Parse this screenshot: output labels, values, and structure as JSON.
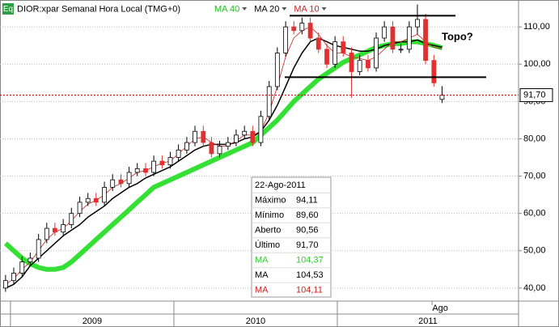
{
  "chart_data": {
    "type": "candlestick",
    "symbol": "Eq",
    "title": "DIOR:xpar Semanal Hora Local (TMG+0)",
    "x": [
      2008.97,
      2009.02,
      2009.071,
      2009.121,
      2009.172,
      2009.222,
      2009.272,
      2009.323,
      2009.373,
      2009.424,
      2009.474,
      2009.524,
      2009.575,
      2009.625,
      2009.676,
      2009.726,
      2009.776,
      2009.827,
      2009.877,
      2009.928,
      2009.978,
      2010.028,
      2010.079,
      2010.129,
      2010.18,
      2010.23,
      2010.28,
      2010.331,
      2010.381,
      2010.432,
      2010.482,
      2010.532,
      2010.583,
      2010.633,
      2010.684,
      2010.734,
      2010.784,
      2010.835,
      2010.885,
      2010.936,
      2010.986,
      2011.036,
      2011.087,
      2011.137,
      2011.188,
      2011.238,
      2011.288,
      2011.339,
      2011.389,
      2011.44,
      2011.49,
      2011.54,
      2011.591,
      2011.641
    ],
    "open": [
      40,
      42,
      44,
      47,
      48,
      53,
      56,
      55,
      57,
      60,
      63,
      64,
      63,
      67,
      69,
      68,
      71,
      72,
      71,
      74,
      73,
      75,
      77,
      79,
      82,
      79,
      76,
      78,
      79,
      81,
      82,
      79,
      86,
      94,
      103,
      110,
      109,
      111,
      107,
      104,
      100,
      106,
      103,
      98,
      101,
      99,
      107,
      110,
      104,
      104,
      110,
      112,
      101,
      90.56
    ],
    "high": [
      43.5,
      45.5,
      48.5,
      49.5,
      54.5,
      57.5,
      57.5,
      58.5,
      61.5,
      64.5,
      65.5,
      65.5,
      68.5,
      70.5,
      70.5,
      72.5,
      73.5,
      73.5,
      75.5,
      75.5,
      76.5,
      78.5,
      80.5,
      83.5,
      83.5,
      80.5,
      79.5,
      80.5,
      82.5,
      83.5,
      83.5,
      87.5,
      95.5,
      104.5,
      111.5,
      111.5,
      112.5,
      112.5,
      108.5,
      105.5,
      107.5,
      107.5,
      104.5,
      102.5,
      102.5,
      108.5,
      111.5,
      111.5,
      105.5,
      111.5,
      116,
      113.5,
      102.5,
      94.11
    ],
    "low": [
      39,
      41,
      43,
      46,
      47,
      52,
      54,
      54,
      56,
      59,
      62,
      62,
      62,
      66,
      67,
      67,
      70,
      70,
      70,
      72,
      72,
      74,
      76,
      78,
      78,
      75,
      75,
      77,
      78,
      80,
      78,
      78,
      85,
      93,
      102,
      108,
      108,
      106,
      103,
      99,
      99,
      102,
      91,
      97,
      98,
      98,
      106,
      103,
      103,
      103,
      108,
      100,
      94,
      89.6
    ],
    "close": [
      42,
      44,
      47,
      48,
      53,
      56,
      55,
      57,
      60,
      63,
      64,
      63,
      67,
      69,
      68,
      71,
      72,
      71,
      74,
      73,
      75,
      77,
      79,
      82,
      79,
      76,
      78,
      79,
      81,
      82,
      79,
      86,
      94,
      103,
      110,
      109,
      111,
      107,
      104,
      100,
      106,
      103,
      98,
      101,
      99,
      107,
      110,
      104,
      104,
      110,
      112,
      101,
      95,
      91.7
    ],
    "up_color": "#ffffff",
    "down_color": "#e03030",
    "series": [
      {
        "name": "MA 40",
        "color": "#33e033",
        "width": 6,
        "values": [
          52,
          50,
          48,
          46.5,
          45.5,
          45,
          45,
          45.5,
          47,
          49,
          51,
          53,
          55,
          57,
          59,
          61,
          63,
          65,
          67,
          68,
          69,
          70,
          71,
          72,
          73,
          74,
          75,
          76,
          77,
          78,
          79,
          81,
          83,
          85,
          87.5,
          90,
          92,
          94,
          96,
          97.5,
          99,
          100.5,
          101.5,
          102.5,
          103.5,
          104.5,
          105,
          105.5,
          105.5,
          106,
          106,
          105.5,
          105,
          104.37
        ]
      },
      {
        "name": "MA 20",
        "color": "#000000",
        "width": 1.5,
        "values": [
          40,
          41,
          43,
          46,
          48,
          50,
          52,
          54,
          55.5,
          57,
          59,
          60.5,
          62,
          64,
          65.5,
          67,
          68,
          69.5,
          70.5,
          71.5,
          72.5,
          74,
          75.5,
          77,
          78,
          78.5,
          78.5,
          78.5,
          79,
          80,
          80.5,
          82,
          85,
          89,
          94,
          99,
          103,
          106,
          107,
          106,
          105,
          104.5,
          104,
          103.5,
          103.5,
          104,
          105,
          105.5,
          106,
          106,
          106.5,
          105.5,
          105,
          104.53
        ]
      },
      {
        "name": "MA 10",
        "color": "#cc2222",
        "width": 0.8,
        "values": [
          41,
          42.5,
          45,
          47,
          50,
          53,
          55,
          56,
          58,
          60.5,
          62.5,
          63.5,
          65,
          67,
          68,
          69.5,
          71,
          71.5,
          72.5,
          73.5,
          74,
          76,
          78,
          80,
          80.5,
          79,
          78,
          78,
          79.5,
          81,
          81,
          82,
          87,
          94,
          102,
          107,
          109,
          110,
          108,
          105,
          103,
          103,
          102,
          101.5,
          101,
          102,
          104,
          106,
          106,
          107,
          108,
          106,
          104.5,
          104.11
        ]
      }
    ],
    "xlim": [
      2008.936,
      2012.109
    ],
    "ylim": [
      36.5,
      117.2
    ],
    "yticks": [
      {
        "value": 40,
        "label": "40,00"
      },
      {
        "value": 50,
        "label": "50,00"
      },
      {
        "value": 60,
        "label": "60,00"
      },
      {
        "value": 70,
        "label": "70,00"
      },
      {
        "value": 80,
        "label": "80,00"
      },
      {
        "value": 90,
        "label": "90,00"
      },
      {
        "value": 100,
        "label": "100,00"
      },
      {
        "value": 110,
        "label": "110,00"
      }
    ],
    "xticks": [
      {
        "value": 2009,
        "label": "2009"
      },
      {
        "value": 2010,
        "label": "2010"
      },
      {
        "value": 2011,
        "label": "2011"
      }
    ],
    "month_ticks": [
      {
        "value": 2011.58,
        "label": "Ago"
      }
    ],
    "grid": true,
    "last_price": {
      "value": 91.7,
      "label": "91,70"
    },
    "levels": [
      113,
      96.5
    ],
    "annotation": "Topo?",
    "info_box": {
      "date": "22-Ago-2011",
      "rows": [
        {
          "label": "Máximo",
          "value": "94,11",
          "color": "#000000"
        },
        {
          "label": "Mínimo",
          "value": "89,60",
          "color": "#000000"
        },
        {
          "label": "Aberto",
          "value": "90,56",
          "color": "#000000"
        },
        {
          "label": "Último",
          "value": "91,70",
          "color": "#000000"
        },
        {
          "label": "MA",
          "value": "104,37",
          "color": "#33cc33"
        },
        {
          "label": "MA",
          "value": "104,53",
          "color": "#000000"
        },
        {
          "label": "MA",
          "value": "104,11",
          "color": "#cc2222"
        }
      ]
    }
  }
}
